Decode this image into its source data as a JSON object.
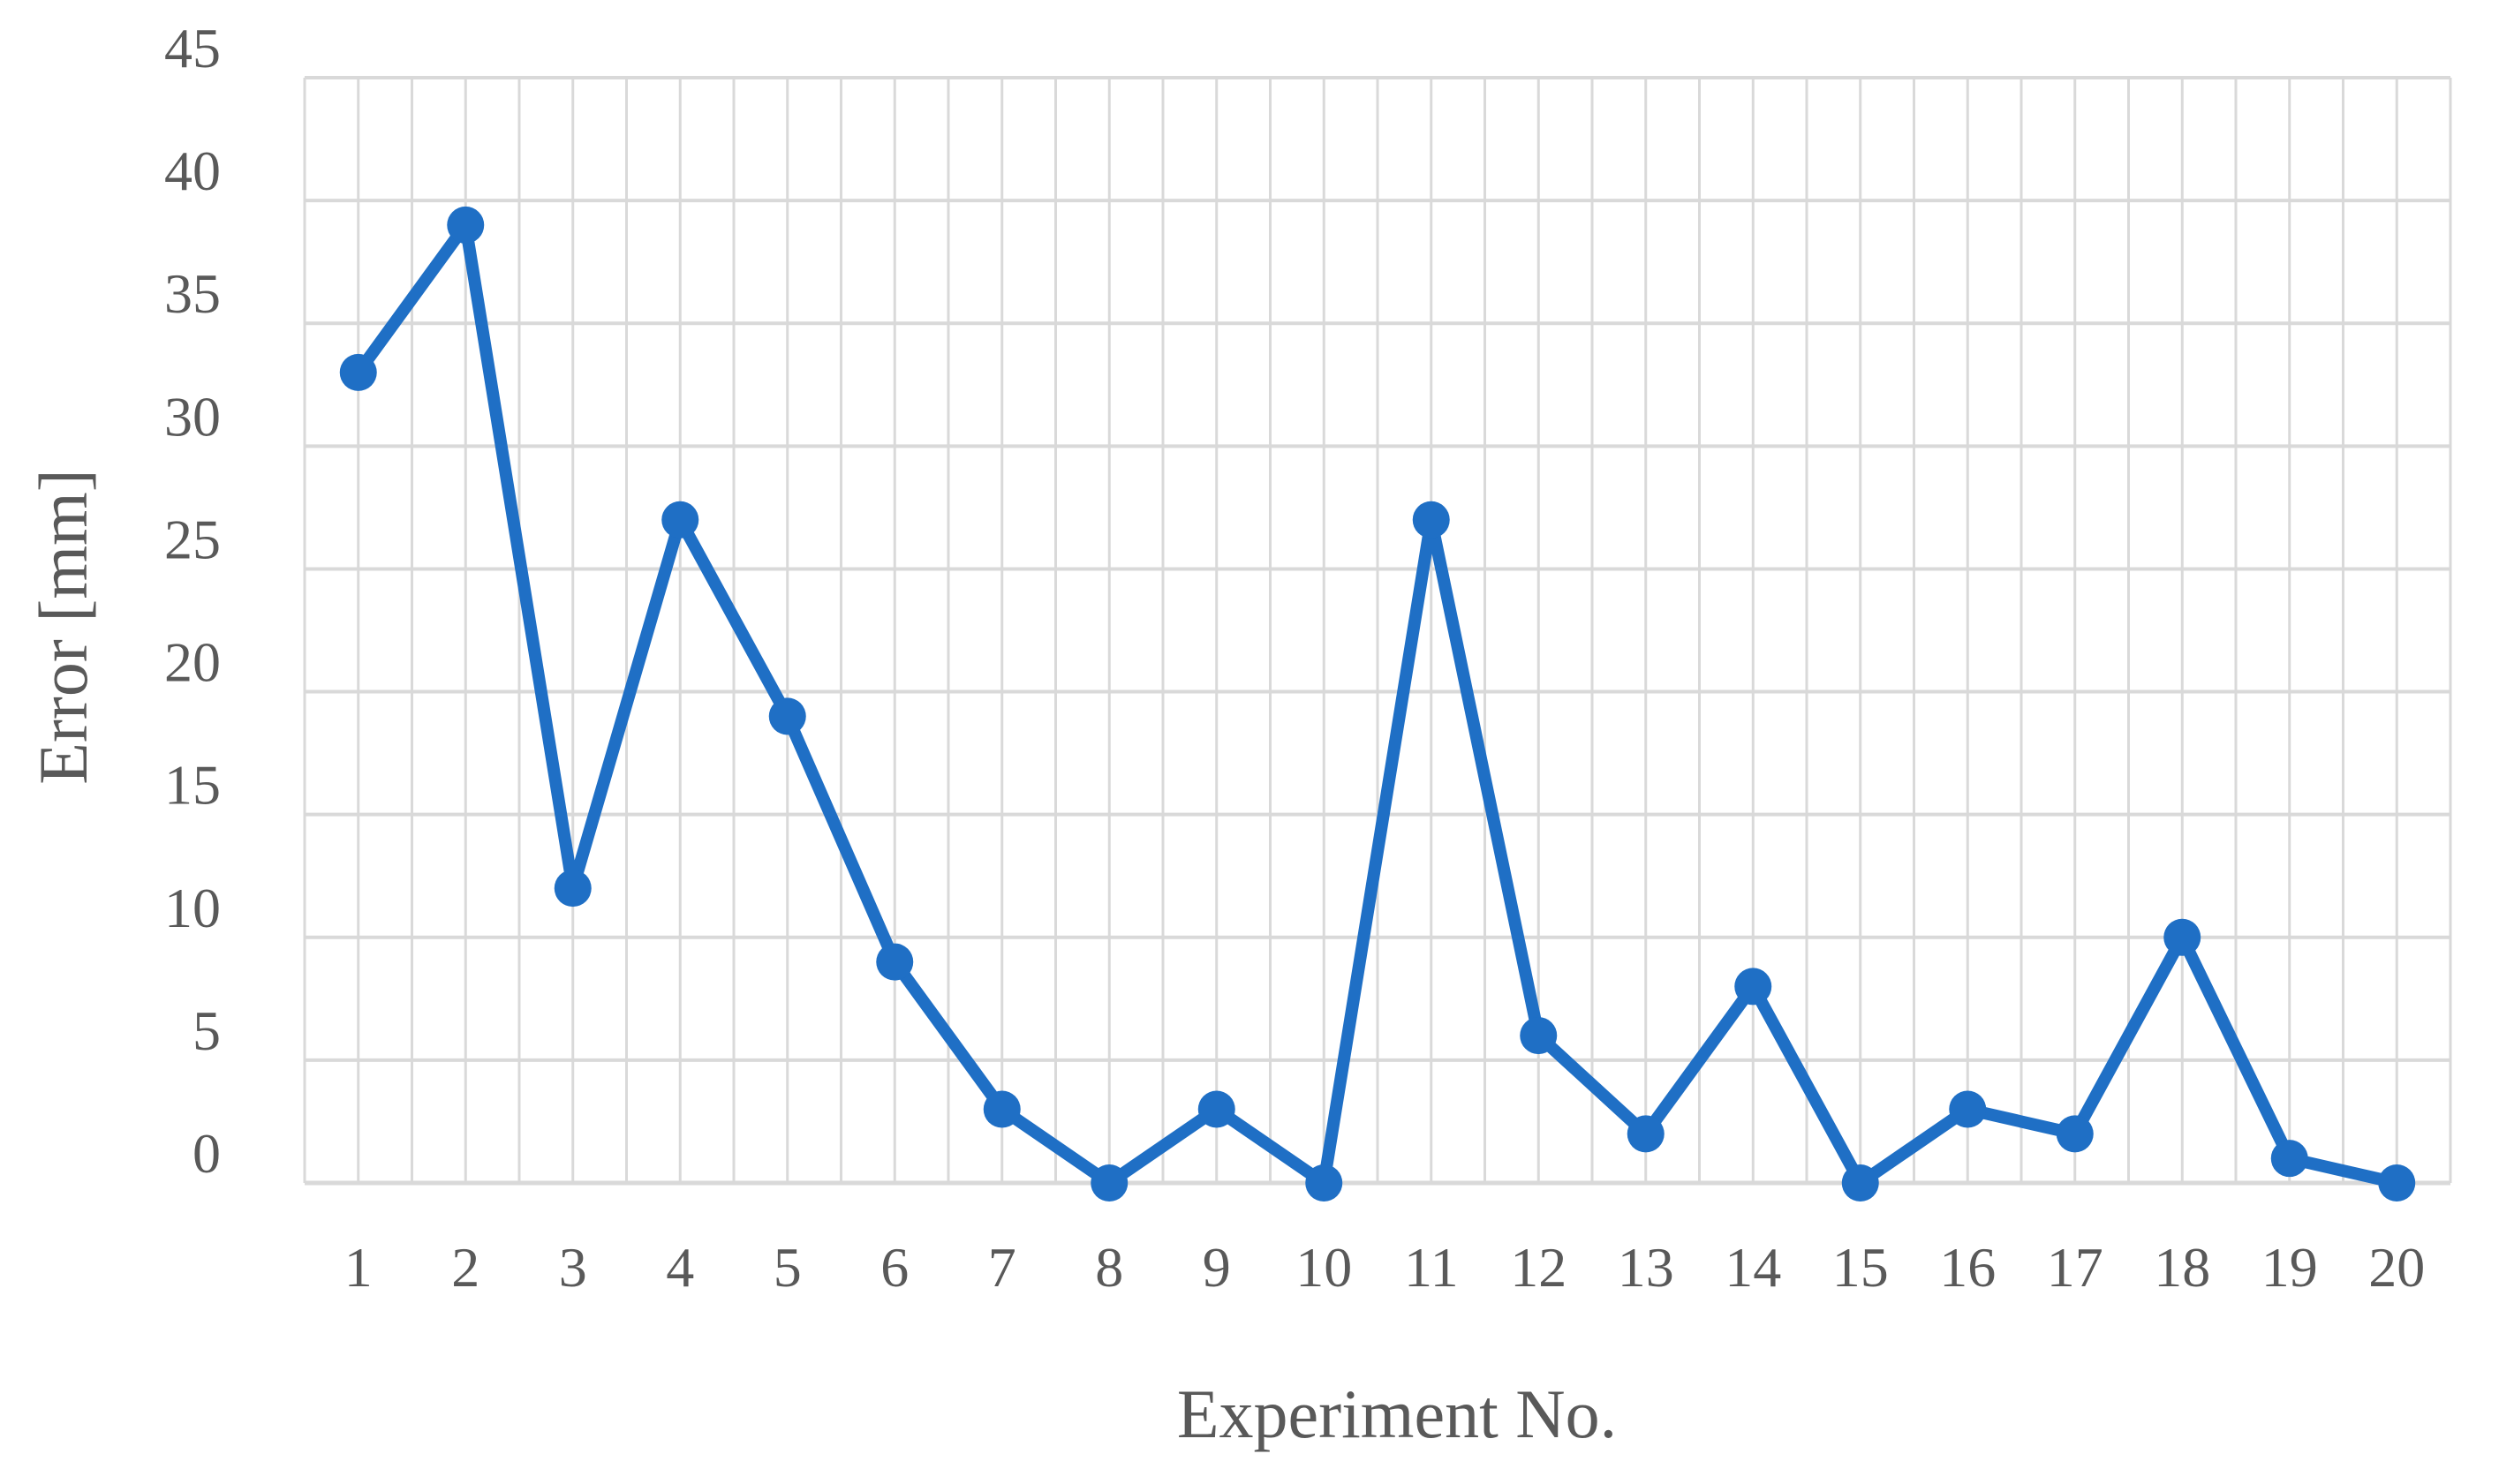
{
  "chart_data": {
    "type": "line",
    "title": "",
    "xlabel": "Experiment No.",
    "ylabel": "Error [mm]",
    "categories": [
      "1",
      "2",
      "3",
      "4",
      "5",
      "6",
      "7",
      "8",
      "9",
      "10",
      "11",
      "12",
      "13",
      "14",
      "15",
      "16",
      "17",
      "18",
      "19",
      "20"
    ],
    "series": [
      {
        "values": [
          33,
          39,
          12,
          27,
          19,
          9,
          3,
          0,
          3,
          0,
          27,
          6,
          2,
          8,
          0,
          3,
          2,
          10,
          1,
          0
        ],
        "color": "#1F6FC5",
        "marker": "circle"
      }
    ],
    "ylim": [
      0,
      45
    ],
    "yticks": [
      0,
      5,
      10,
      15,
      20,
      25,
      30,
      35,
      40,
      45
    ],
    "grid": true,
    "minor_vertical_grid": true,
    "legend": "none",
    "colors": {
      "grid": "#D9D9D9",
      "text": "#595959",
      "line": "#1F6FC5"
    }
  }
}
